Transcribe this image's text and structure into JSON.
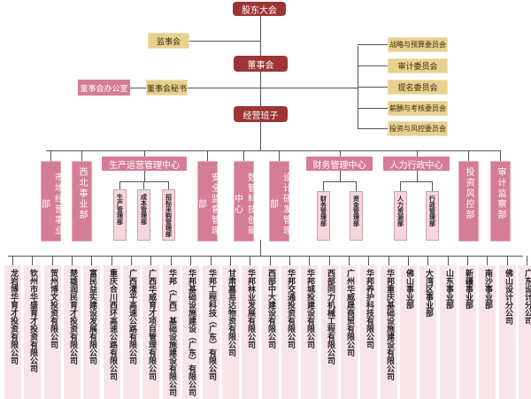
{
  "top": {
    "shareholders": "股东大会",
    "supervisors": "监事会",
    "board": "董事会",
    "board_office": "董事会办公室",
    "board_secretary": "董事会秘书",
    "management": "经营班子"
  },
  "committees": [
    "战略与预算委员会",
    "审计委员会",
    "提名委员会",
    "薪酬与考核委员会",
    "投资与风控委员会"
  ],
  "departments": {
    "market": "市场经营事业部",
    "northwest": "西北事业部",
    "production_center": {
      "label": "生产运营管理中心",
      "subs": [
        "生产管理部",
        "成本管理部",
        "招标采购管理部"
      ]
    },
    "safety": "安全监督管理部",
    "digital": "数智科技创新中心",
    "design": "设计研发管理部",
    "finance_center": {
      "label": "财务管理中心",
      "subs": [
        "财务管理部",
        "资金管理部"
      ]
    },
    "hr_center": {
      "label": "人力行政中心",
      "subs": [
        "人力资源部",
        "行政管理部"
      ]
    },
    "investment_risk": "投资风控部",
    "audit": "审计监察部"
  },
  "subsidiaries": [
    "龙岩博华育才投资有限公司",
    "钦州市华盛育才投资有限公司",
    "贺州博文投资有限公司",
    "楚雄润民育才投资有限公司",
    "富民益实建设发展有限公司",
    "重庆合川西环高速公路有限公司",
    "广西灌平高速公路有限公司",
    "广西华威育才项目管理有限公司",
    "华邦（广西）基础设施建设有限公司",
    "华邦基础设施建设（广东）有限公司",
    "华邦工程科技（广东）有限公司",
    "甘肃嘉易达物资有限公司",
    "华邦林业发展有限公司",
    "西部中大建设有限公司",
    "华邦交通投资有限公司",
    "华邦城投建设有限公司",
    "西部同力机械工程有限公司",
    "广州华威晟商贸有限公司",
    "华邦养护科技有限公司",
    "华邦重庆基础设施建设有限公司",
    "佛山事业部",
    "大湾区事业部",
    "山东事业部",
    "新疆事业部",
    "南沙事业部",
    "佛山设计分公司",
    "广东设计分公司"
  ],
  "colors": {
    "dark_red": "#9e3434",
    "pink": "#d57c96",
    "light_pink": "#f6d5dd",
    "tan": "#e8d08e",
    "bottom_box": "#f8e5ea"
  }
}
